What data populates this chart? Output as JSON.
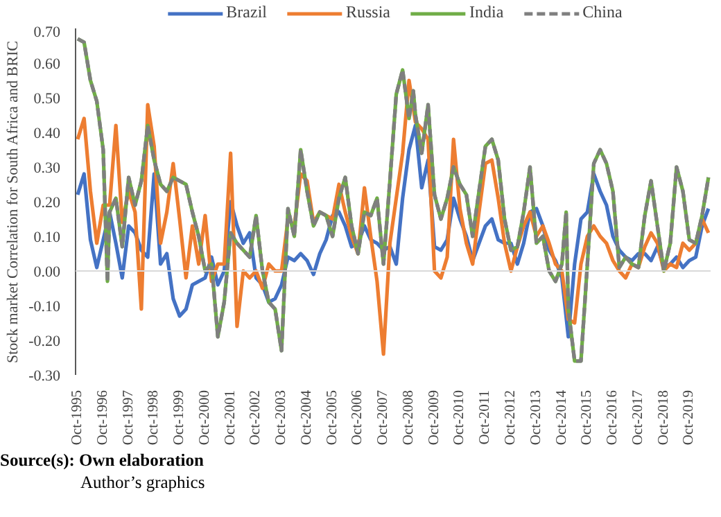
{
  "chart_data": {
    "type": "line",
    "ylabel": "Stock market Correlation for South Africa and BRIC",
    "annotations": [
      "Source(s): Own elaboration",
      "Author’s graphics"
    ],
    "x": [
      "1995-10",
      "1996-01",
      "1996-04",
      "1996-07",
      "1996-10",
      "1997-01",
      "1997-04",
      "1997-07",
      "1997-10",
      "1998-01",
      "1998-04",
      "1998-07",
      "1998-10",
      "1999-01",
      "1999-04",
      "1999-07",
      "1999-10",
      "2000-01",
      "2000-04",
      "2000-07",
      "2000-10",
      "2001-01",
      "2001-04",
      "2001-07",
      "2001-10",
      "2002-01",
      "2002-04",
      "2002-07",
      "2002-10",
      "2003-01",
      "2003-04",
      "2003-07",
      "2003-10",
      "2004-01",
      "2004-04",
      "2004-07",
      "2004-10",
      "2005-01",
      "2005-04",
      "2005-07",
      "2005-10",
      "2006-01",
      "2006-04",
      "2006-07",
      "2006-10",
      "2007-01",
      "2007-04",
      "2007-07",
      "2007-10",
      "2008-01",
      "2008-04",
      "2008-07",
      "2008-10",
      "2009-01",
      "2009-04",
      "2009-07",
      "2009-10",
      "2010-01",
      "2010-04",
      "2010-07",
      "2010-10",
      "2011-01",
      "2011-04",
      "2011-07",
      "2011-10",
      "2012-01",
      "2012-04",
      "2012-07",
      "2012-10",
      "2013-01",
      "2013-04",
      "2013-07",
      "2013-10",
      "2014-01",
      "2014-04",
      "2014-07",
      "2014-10",
      "2015-01",
      "2015-04",
      "2015-07",
      "2015-10",
      "2016-01",
      "2016-04",
      "2016-07",
      "2016-10",
      "2017-01",
      "2017-04",
      "2017-07",
      "2017-10",
      "2018-01",
      "2018-04",
      "2018-07",
      "2018-10",
      "2019-01",
      "2019-04",
      "2019-07",
      "2019-10",
      "2020-01",
      "2020-04",
      "2020-07"
    ],
    "series": [
      {
        "name": "Brazil",
        "color": "#4472c4",
        "values": [
          0.22,
          0.28,
          0.09,
          0.01,
          0.09,
          0.17,
          0.08,
          -0.02,
          0.13,
          0.11,
          0.06,
          0.04,
          0.28,
          0.02,
          0.05,
          -0.08,
          -0.13,
          -0.11,
          -0.04,
          -0.03,
          -0.02,
          0.04,
          -0.04,
          0.0,
          0.2,
          0.13,
          0.08,
          0.11,
          -0.02,
          -0.04,
          -0.09,
          -0.08,
          -0.04,
          0.04,
          0.03,
          0.05,
          0.03,
          -0.01,
          0.05,
          0.09,
          0.16,
          0.17,
          0.13,
          0.07,
          0.08,
          0.13,
          0.09,
          0.08,
          0.06,
          0.07,
          0.02,
          0.21,
          0.35,
          0.42,
          0.24,
          0.32,
          0.07,
          0.06,
          0.09,
          0.21,
          0.15,
          0.1,
          0.03,
          0.08,
          0.13,
          0.15,
          0.09,
          0.08,
          0.08,
          0.02,
          0.08,
          0.17,
          0.18,
          0.13,
          0.06,
          0.03,
          -0.02,
          -0.19,
          0.02,
          0.15,
          0.17,
          0.28,
          0.23,
          0.19,
          0.1,
          0.06,
          0.04,
          0.03,
          0.05,
          0.05,
          0.03,
          0.07,
          0.01,
          0.02,
          0.04,
          0.01,
          0.03,
          0.04,
          0.13,
          0.18
        ]
      },
      {
        "name": "Russia",
        "color": "#ed7d31",
        "values": [
          0.38,
          0.44,
          0.23,
          0.08,
          0.19,
          0.19,
          0.42,
          0.14,
          0.23,
          0.17,
          -0.11,
          0.48,
          0.36,
          0.08,
          0.17,
          0.31,
          0.15,
          -0.02,
          0.13,
          0.02,
          0.16,
          -0.03,
          0.02,
          0.02,
          0.34,
          -0.16,
          0.0,
          -0.02,
          0.0,
          -0.05,
          0.02,
          0.0,
          0.0,
          0.15,
          0.13,
          0.28,
          0.26,
          0.14,
          0.17,
          0.16,
          0.15,
          0.25,
          0.17,
          0.1,
          0.05,
          0.24,
          0.1,
          -0.03,
          -0.24,
          0.08,
          0.21,
          0.34,
          0.55,
          0.43,
          0.41,
          0.38,
          0.0,
          -0.02,
          0.04,
          0.38,
          0.18,
          0.08,
          0.02,
          0.17,
          0.31,
          0.32,
          0.21,
          0.08,
          0.0,
          0.07,
          0.13,
          0.17,
          0.1,
          0.13,
          0.08,
          0.02,
          0.0,
          -0.14,
          -0.15,
          0.02,
          0.1,
          0.13,
          0.1,
          0.08,
          0.03,
          0.0,
          -0.02,
          0.02,
          0.01,
          0.07,
          0.11,
          0.08,
          0.0,
          0.02,
          0.01,
          0.08,
          0.06,
          0.08,
          0.15,
          0.11
        ]
      },
      {
        "name": "India",
        "color": "#70ad47",
        "x": [
          "1995-10",
          "1996-01",
          "1996-04",
          "1996-07",
          "1996-10",
          "1996-12",
          "1997-01",
          "1997-04",
          "1997-07",
          "1997-10",
          "1998-01",
          "1998-04",
          "1998-07",
          "1998-10",
          "1999-01",
          "1999-04",
          "1999-07",
          "1999-10",
          "2000-01",
          "2000-04",
          "2000-07",
          "2000-10",
          "2001-01",
          "2001-04",
          "2001-07",
          "2001-10",
          "2002-01",
          "2002-04",
          "2002-07",
          "2002-10",
          "2003-01",
          "2003-04",
          "2003-07",
          "2003-10",
          "2004-01",
          "2004-04",
          "2004-07",
          "2004-10",
          "2005-01",
          "2005-04",
          "2005-07",
          "2005-10",
          "2006-01",
          "2006-04",
          "2006-07",
          "2006-10",
          "2007-01",
          "2007-04",
          "2007-07",
          "2007-10",
          "2008-01",
          "2008-04",
          "2008-07",
          "2008-10",
          "2008-12",
          "2009-01",
          "2009-04",
          "2009-07",
          "2009-10",
          "2010-01",
          "2010-04",
          "2010-07",
          "2010-10",
          "2011-01",
          "2011-04",
          "2011-07",
          "2011-10",
          "2012-01",
          "2012-04",
          "2012-07",
          "2012-10",
          "2013-01",
          "2013-04",
          "2013-07",
          "2013-10",
          "2014-01",
          "2014-04",
          "2014-07",
          "2014-10",
          "2014-12",
          "2015-01",
          "2015-04",
          "2015-07",
          "2015-10",
          "2016-01",
          "2016-04",
          "2016-07",
          "2016-10",
          "2017-01",
          "2017-04",
          "2017-07",
          "2017-10",
          "2018-01",
          "2018-04",
          "2018-07",
          "2018-10",
          "2019-01",
          "2019-04",
          "2019-07",
          "2019-10",
          "2020-01",
          "2020-04",
          "2020-07"
        ],
        "values": [
          0.67,
          0.66,
          0.55,
          0.49,
          0.35,
          -0.03,
          0.17,
          0.21,
          0.07,
          0.27,
          0.19,
          0.26,
          0.42,
          0.32,
          0.25,
          0.23,
          0.27,
          0.26,
          0.25,
          0.17,
          0.1,
          0.0,
          0.02,
          -0.19,
          -0.09,
          0.11,
          0.08,
          0.06,
          0.04,
          0.16,
          0.0,
          -0.09,
          -0.11,
          -0.23,
          0.18,
          0.1,
          0.35,
          0.23,
          0.13,
          0.17,
          0.16,
          0.1,
          0.21,
          0.27,
          0.13,
          0.05,
          0.17,
          0.16,
          0.21,
          0.02,
          0.26,
          0.51,
          0.58,
          0.44,
          0.52,
          0.45,
          0.34,
          0.48,
          0.22,
          0.15,
          0.21,
          0.3,
          0.25,
          0.22,
          0.1,
          0.23,
          0.36,
          0.38,
          0.32,
          0.15,
          0.06,
          0.07,
          0.17,
          0.3,
          0.08,
          0.1,
          0.0,
          -0.03,
          0.02,
          0.17,
          -0.11,
          -0.26,
          -0.26,
          0.02,
          0.31,
          0.35,
          0.31,
          0.23,
          0.01,
          0.04,
          0.02,
          0.01,
          0.16,
          0.26,
          0.13,
          0.0,
          0.08,
          0.3,
          0.23,
          0.09,
          0.08,
          0.16,
          0.27
        ]
      },
      {
        "name": "China",
        "color": "#7f7f7f",
        "line_style": "dashed",
        "x": [
          "1995-10",
          "1996-01",
          "1996-04",
          "1996-07",
          "1996-10",
          "1996-12",
          "1997-01",
          "1997-04",
          "1997-07",
          "1997-10",
          "1998-01",
          "1998-04",
          "1998-07",
          "1998-10",
          "1999-01",
          "1999-04",
          "1999-07",
          "1999-10",
          "2000-01",
          "2000-04",
          "2000-07",
          "2000-10",
          "2001-01",
          "2001-04",
          "2001-07",
          "2001-10",
          "2002-01",
          "2002-04",
          "2002-07",
          "2002-10",
          "2003-01",
          "2003-04",
          "2003-07",
          "2003-10",
          "2004-01",
          "2004-04",
          "2004-07",
          "2004-10",
          "2005-01",
          "2005-04",
          "2005-07",
          "2005-10",
          "2006-01",
          "2006-04",
          "2006-07",
          "2006-10",
          "2007-01",
          "2007-04",
          "2007-07",
          "2007-10",
          "2008-01",
          "2008-04",
          "2008-07",
          "2008-10",
          "2008-12",
          "2009-01",
          "2009-04",
          "2009-07",
          "2009-10",
          "2010-01",
          "2010-04",
          "2010-07",
          "2010-10",
          "2011-01",
          "2011-04",
          "2011-07",
          "2011-10",
          "2012-01",
          "2012-04",
          "2012-07",
          "2012-10",
          "2013-01",
          "2013-04",
          "2013-07",
          "2013-10",
          "2014-01",
          "2014-04",
          "2014-07",
          "2014-10",
          "2014-12",
          "2015-01",
          "2015-04",
          "2015-07",
          "2015-10",
          "2016-01",
          "2016-04",
          "2016-07",
          "2016-10",
          "2017-01",
          "2017-04",
          "2017-07",
          "2017-10",
          "2018-01",
          "2018-04",
          "2018-07",
          "2018-10",
          "2019-01",
          "2019-04",
          "2019-07",
          "2019-10",
          "2020-01",
          "2020-04",
          "2020-07"
        ],
        "values": [
          0.67,
          0.66,
          0.55,
          0.49,
          0.35,
          -0.03,
          0.17,
          0.21,
          0.07,
          0.27,
          0.19,
          0.26,
          0.42,
          0.32,
          0.25,
          0.23,
          0.27,
          0.26,
          0.25,
          0.17,
          0.1,
          0.0,
          0.02,
          -0.19,
          -0.09,
          0.11,
          0.08,
          0.06,
          0.04,
          0.16,
          0.0,
          -0.09,
          -0.11,
          -0.23,
          0.18,
          0.1,
          0.35,
          0.23,
          0.13,
          0.17,
          0.16,
          0.1,
          0.21,
          0.27,
          0.13,
          0.05,
          0.17,
          0.16,
          0.21,
          0.02,
          0.26,
          0.51,
          0.58,
          0.44,
          0.52,
          0.45,
          0.34,
          0.48,
          0.22,
          0.15,
          0.21,
          0.3,
          0.25,
          0.22,
          0.1,
          0.23,
          0.36,
          0.38,
          0.32,
          0.15,
          0.06,
          0.07,
          0.17,
          0.3,
          0.08,
          0.1,
          0.0,
          -0.03,
          0.02,
          0.17,
          -0.11,
          -0.26,
          -0.26,
          0.02,
          0.31,
          0.35,
          0.31,
          0.23,
          0.01,
          0.04,
          0.02,
          0.01,
          0.16,
          0.26,
          0.13,
          0.0,
          0.08,
          0.3,
          0.23,
          0.09,
          0.08,
          0.16,
          0.27
        ]
      }
    ],
    "xlim": [
      "1995-09",
      "2020-08"
    ],
    "xticks": [
      {
        "value": "1995-10",
        "label": "Oct-1995"
      },
      {
        "value": "1996-10",
        "label": "Oct-1996"
      },
      {
        "value": "1997-10",
        "label": "Oct-1997"
      },
      {
        "value": "1998-10",
        "label": "Oct-1998"
      },
      {
        "value": "1999-10",
        "label": "Oct-1999"
      },
      {
        "value": "2000-10",
        "label": "Oct-2000"
      },
      {
        "value": "2001-10",
        "label": "Oct-2001"
      },
      {
        "value": "2002-10",
        "label": "Oct-2002"
      },
      {
        "value": "2003-10",
        "label": "Oct-2003"
      },
      {
        "value": "2004-10",
        "label": "Oct-2004"
      },
      {
        "value": "2005-10",
        "label": "Oct-2005"
      },
      {
        "value": "2006-10",
        "label": "Oct-2006"
      },
      {
        "value": "2007-10",
        "label": "Oct-2007"
      },
      {
        "value": "2008-10",
        "label": "Oct-2008"
      },
      {
        "value": "2009-10",
        "label": "Oct-2009"
      },
      {
        "value": "2010-10",
        "label": "Oct-2010"
      },
      {
        "value": "2011-10",
        "label": "Oct-2011"
      },
      {
        "value": "2012-10",
        "label": "Oct-2012"
      },
      {
        "value": "2013-10",
        "label": "Oct-2013"
      },
      {
        "value": "2014-10",
        "label": "Oct-2014"
      },
      {
        "value": "2015-10",
        "label": "Oct-2015"
      },
      {
        "value": "2016-10",
        "label": "Oct-2016"
      },
      {
        "value": "2017-10",
        "label": "Oct-2017"
      },
      {
        "value": "2018-10",
        "label": "Oct-2018"
      },
      {
        "value": "2019-10",
        "label": "Oct-2019"
      }
    ],
    "ylim": [
      -0.3,
      0.7
    ],
    "yticks": [
      {
        "value": -0.3,
        "label": "-0.30"
      },
      {
        "value": -0.2,
        "label": "-0.20"
      },
      {
        "value": -0.1,
        "label": "-0.10"
      },
      {
        "value": 0,
        "label": "0.00"
      },
      {
        "value": 0.1,
        "label": "0.10"
      },
      {
        "value": 0.2,
        "label": "0.20"
      },
      {
        "value": 0.3,
        "label": "0.30"
      },
      {
        "value": 0.4,
        "label": "0.40"
      },
      {
        "value": 0.5,
        "label": "0.50"
      },
      {
        "value": 0.6,
        "label": "0.60"
      },
      {
        "value": 0.7,
        "label": "0.70"
      }
    ],
    "grid": false,
    "ref_lines": [
      {
        "axis": "y",
        "value": 0,
        "color": "#d9d9d9"
      }
    ],
    "legend": "top"
  }
}
